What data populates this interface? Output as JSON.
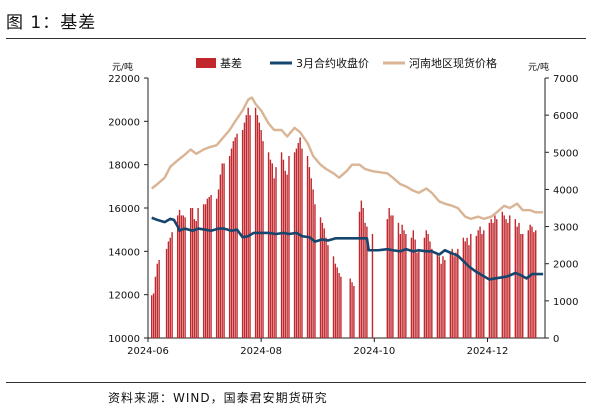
{
  "figure": {
    "title": "图 1：基差",
    "source": "资料来源：WIND，国泰君安期货研究"
  },
  "chart_data": {
    "type": "bar+line",
    "left_axis": {
      "unit": "元/吨",
      "ylim": [
        10000,
        22000
      ],
      "ticks": [
        10000,
        12000,
        14000,
        16000,
        18000,
        20000,
        22000
      ]
    },
    "right_axis": {
      "unit": "元/吨",
      "ylim": [
        0,
        7000
      ],
      "ticks": [
        0,
        1000,
        2000,
        3000,
        4000,
        5000,
        6000,
        7000
      ]
    },
    "x_ticks": [
      "2024-06",
      "2024-08",
      "2024-10",
      "2024-12"
    ],
    "legend": {
      "position": "top",
      "entries": [
        "基差",
        "3月合约收盘价",
        "河南地区现货价格"
      ]
    },
    "colors": {
      "basis": "#c0282d",
      "futures": "#16466e",
      "spot": "#d9b595"
    },
    "series": [
      {
        "name": "基差",
        "axis": "right",
        "type": "bar",
        "points": [
          [
            "2024-06-03",
            1150
          ],
          [
            "2024-06-04",
            1200
          ],
          [
            "2024-06-05",
            1650
          ],
          [
            "2024-06-06",
            2000
          ],
          [
            "2024-06-07",
            2100
          ],
          [
            "2024-06-11",
            2400
          ],
          [
            "2024-06-12",
            2600
          ],
          [
            "2024-06-13",
            2700
          ],
          [
            "2024-06-14",
            2850
          ],
          [
            "2024-06-17",
            3300
          ],
          [
            "2024-06-18",
            3450
          ],
          [
            "2024-06-19",
            3300
          ],
          [
            "2024-06-20",
            3300
          ],
          [
            "2024-06-21",
            3250
          ],
          [
            "2024-06-24",
            3500
          ],
          [
            "2024-06-25",
            3500
          ],
          [
            "2024-06-26",
            3200
          ],
          [
            "2024-06-27",
            3150
          ],
          [
            "2024-06-28",
            3500
          ],
          [
            "2024-07-01",
            3600
          ],
          [
            "2024-07-02",
            3600
          ],
          [
            "2024-07-03",
            3750
          ],
          [
            "2024-07-04",
            3800
          ],
          [
            "2024-07-05",
            3850
          ],
          [
            "2024-07-08",
            3750
          ],
          [
            "2024-07-09",
            4000
          ],
          [
            "2024-07-10",
            4400
          ],
          [
            "2024-07-11",
            4700
          ],
          [
            "2024-07-12",
            4700
          ],
          [
            "2024-07-15",
            4900
          ],
          [
            "2024-07-16",
            5100
          ],
          [
            "2024-07-17",
            5300
          ],
          [
            "2024-07-18",
            5400
          ],
          [
            "2024-07-19",
            5500
          ],
          [
            "2024-07-22",
            5600
          ],
          [
            "2024-07-23",
            5800
          ],
          [
            "2024-07-24",
            6000
          ],
          [
            "2024-07-25",
            6200
          ],
          [
            "2024-07-26",
            6000
          ],
          [
            "2024-07-29",
            6200
          ],
          [
            "2024-07-30",
            6000
          ],
          [
            "2024-07-31",
            5800
          ],
          [
            "2024-08-01",
            5600
          ],
          [
            "2024-08-02",
            5300
          ],
          [
            "2024-08-05",
            5000
          ],
          [
            "2024-08-06",
            4800
          ],
          [
            "2024-08-07",
            4700
          ],
          [
            "2024-08-08",
            4300
          ],
          [
            "2024-08-09",
            4600
          ],
          [
            "2024-08-12",
            5000
          ],
          [
            "2024-08-13",
            4800
          ],
          [
            "2024-08-14",
            4500
          ],
          [
            "2024-08-15",
            4400
          ],
          [
            "2024-08-16",
            4900
          ],
          [
            "2024-08-19",
            5000
          ],
          [
            "2024-08-20",
            5100
          ],
          [
            "2024-08-21",
            5250
          ],
          [
            "2024-08-22",
            5400
          ],
          [
            "2024-08-23",
            5100
          ],
          [
            "2024-08-26",
            4900
          ],
          [
            "2024-08-27",
            4600
          ],
          [
            "2024-08-28",
            4300
          ],
          [
            "2024-08-29",
            4000
          ],
          [
            "2024-08-30",
            3600
          ],
          [
            "2024-09-02",
            3250
          ],
          [
            "2024-09-03",
            3100
          ],
          [
            "2024-09-04",
            2950
          ],
          [
            "2024-09-05",
            2700
          ],
          [
            "2024-09-06",
            2500
          ],
          [
            "2024-09-09",
            2200
          ],
          [
            "2024-09-10",
            2000
          ],
          [
            "2024-09-11",
            1900
          ],
          [
            "2024-09-12",
            1750
          ],
          [
            "2024-09-13",
            1650
          ],
          [
            "2024-09-18",
            1600
          ],
          [
            "2024-09-19",
            1500
          ],
          [
            "2024-09-20",
            1400
          ],
          [
            "2024-09-23",
            3400
          ],
          [
            "2024-09-24",
            3700
          ],
          [
            "2024-09-25",
            3500
          ],
          [
            "2024-09-26",
            3100
          ],
          [
            "2024-09-27",
            3000
          ],
          [
            "2024-09-30",
            2800
          ],
          [
            "2024-10-08",
            3200
          ],
          [
            "2024-10-09",
            3500
          ],
          [
            "2024-10-10",
            3300
          ],
          [
            "2024-10-11",
            3300
          ],
          [
            "2024-10-14",
            3100
          ],
          [
            "2024-10-15",
            2800
          ],
          [
            "2024-10-16",
            3050
          ],
          [
            "2024-10-17",
            2900
          ],
          [
            "2024-10-18",
            2800
          ],
          [
            "2024-10-21",
            2700
          ],
          [
            "2024-10-22",
            2900
          ],
          [
            "2024-10-23",
            2650
          ],
          [
            "2024-10-24",
            2300
          ],
          [
            "2024-10-25",
            2400
          ],
          [
            "2024-10-28",
            2700
          ],
          [
            "2024-10-29",
            2900
          ],
          [
            "2024-10-30",
            2800
          ],
          [
            "2024-10-31",
            2600
          ],
          [
            "2024-11-01",
            2400
          ],
          [
            "2024-11-04",
            2300
          ],
          [
            "2024-11-05",
            2200
          ],
          [
            "2024-11-06",
            2000
          ],
          [
            "2024-11-07",
            2200
          ],
          [
            "2024-11-08",
            2100
          ],
          [
            "2024-11-11",
            2300
          ],
          [
            "2024-11-12",
            2400
          ],
          [
            "2024-11-13",
            2200
          ],
          [
            "2024-11-14",
            2300
          ],
          [
            "2024-11-15",
            2400
          ],
          [
            "2024-11-18",
            2700
          ],
          [
            "2024-11-19",
            2600
          ],
          [
            "2024-11-20",
            2700
          ],
          [
            "2024-11-21",
            2500
          ],
          [
            "2024-11-22",
            2800
          ],
          [
            "2024-11-25",
            2750
          ],
          [
            "2024-11-26",
            2900
          ],
          [
            "2024-11-27",
            3000
          ],
          [
            "2024-11-28",
            2800
          ],
          [
            "2024-11-29",
            2900
          ],
          [
            "2024-12-02",
            3100
          ],
          [
            "2024-12-03",
            3200
          ],
          [
            "2024-12-04",
            3100
          ],
          [
            "2024-12-05",
            3300
          ],
          [
            "2024-12-06",
            3200
          ],
          [
            "2024-12-09",
            3400
          ],
          [
            "2024-12-10",
            3300
          ],
          [
            "2024-12-11",
            3200
          ],
          [
            "2024-12-12",
            3100
          ],
          [
            "2024-12-13",
            3300
          ],
          [
            "2024-12-16",
            3200
          ],
          [
            "2024-12-17",
            3000
          ],
          [
            "2024-12-18",
            3100
          ],
          [
            "2024-12-19",
            2800
          ],
          [
            "2024-12-20",
            2800
          ],
          [
            "2024-12-23",
            2900
          ],
          [
            "2024-12-24",
            3050
          ],
          [
            "2024-12-25",
            3000
          ],
          [
            "2024-12-26",
            2850
          ],
          [
            "2024-12-27",
            2900
          ]
        ]
      },
      {
        "name": "3月合约收盘价",
        "axis": "left",
        "type": "line",
        "points": [
          [
            "2024-06-03",
            15550
          ],
          [
            "2024-06-06",
            15450
          ],
          [
            "2024-06-10",
            15350
          ],
          [
            "2024-06-13",
            15500
          ],
          [
            "2024-06-15",
            15450
          ],
          [
            "2024-06-17",
            15150
          ],
          [
            "2024-06-18",
            14950
          ],
          [
            "2024-06-19",
            15000
          ],
          [
            "2024-06-21",
            15050
          ],
          [
            "2024-06-25",
            14950
          ],
          [
            "2024-06-28",
            15050
          ],
          [
            "2024-07-02",
            15000
          ],
          [
            "2024-07-05",
            14950
          ],
          [
            "2024-07-09",
            15050
          ],
          [
            "2024-07-12",
            15050
          ],
          [
            "2024-07-16",
            14950
          ],
          [
            "2024-07-19",
            15000
          ],
          [
            "2024-07-22",
            14650
          ],
          [
            "2024-07-25",
            14700
          ],
          [
            "2024-07-28",
            14850
          ],
          [
            "2024-08-01",
            14850
          ],
          [
            "2024-08-05",
            14850
          ],
          [
            "2024-08-09",
            14800
          ],
          [
            "2024-08-13",
            14850
          ],
          [
            "2024-08-16",
            14800
          ],
          [
            "2024-08-20",
            14850
          ],
          [
            "2024-08-23",
            14700
          ],
          [
            "2024-08-27",
            14650
          ],
          [
            "2024-08-30",
            14450
          ],
          [
            "2024-09-03",
            14550
          ],
          [
            "2024-09-06",
            14500
          ],
          [
            "2024-09-10",
            14600
          ],
          [
            "2024-09-13",
            14600
          ],
          [
            "2024-09-17",
            14600
          ],
          [
            "2024-09-20",
            14600
          ],
          [
            "2024-09-24",
            14600
          ],
          [
            "2024-09-27",
            14600
          ],
          [
            "2024-09-28",
            14050
          ],
          [
            "2024-10-03",
            14050
          ],
          [
            "2024-10-08",
            14100
          ],
          [
            "2024-10-11",
            14050
          ],
          [
            "2024-10-15",
            14000
          ],
          [
            "2024-10-18",
            14100
          ],
          [
            "2024-10-22",
            14000
          ],
          [
            "2024-10-25",
            14050
          ],
          [
            "2024-10-29",
            14000
          ],
          [
            "2024-11-01",
            14000
          ],
          [
            "2024-11-05",
            13850
          ],
          [
            "2024-11-08",
            14050
          ],
          [
            "2024-11-12",
            13900
          ],
          [
            "2024-11-15",
            13800
          ],
          [
            "2024-11-18",
            13550
          ],
          [
            "2024-11-21",
            13300
          ],
          [
            "2024-11-25",
            13050
          ],
          [
            "2024-11-28",
            12900
          ],
          [
            "2024-12-02",
            12700
          ],
          [
            "2024-12-05",
            12750
          ],
          [
            "2024-12-09",
            12800
          ],
          [
            "2024-12-12",
            12850
          ],
          [
            "2024-12-16",
            13000
          ],
          [
            "2024-12-19",
            12900
          ],
          [
            "2024-12-22",
            12750
          ],
          [
            "2024-12-25",
            12950
          ],
          [
            "2024-12-28",
            12950
          ],
          [
            "2024-12-31",
            12950
          ]
        ]
      },
      {
        "name": "河南地区现货价格",
        "axis": "left",
        "type": "line",
        "points": [
          [
            "2024-06-03",
            16900
          ],
          [
            "2024-06-06",
            17100
          ],
          [
            "2024-06-10",
            17400
          ],
          [
            "2024-06-13",
            17900
          ],
          [
            "2024-06-17",
            18200
          ],
          [
            "2024-06-20",
            18400
          ],
          [
            "2024-06-24",
            18700
          ],
          [
            "2024-06-27",
            18500
          ],
          [
            "2024-07-01",
            18700
          ],
          [
            "2024-07-04",
            18800
          ],
          [
            "2024-07-08",
            18900
          ],
          [
            "2024-07-11",
            19200
          ],
          [
            "2024-07-15",
            19600
          ],
          [
            "2024-07-18",
            20000
          ],
          [
            "2024-07-22",
            20500
          ],
          [
            "2024-07-25",
            21000
          ],
          [
            "2024-07-27",
            21100
          ],
          [
            "2024-07-29",
            20800
          ],
          [
            "2024-08-01",
            20500
          ],
          [
            "2024-08-05",
            19900
          ],
          [
            "2024-08-08",
            19600
          ],
          [
            "2024-08-12",
            19600
          ],
          [
            "2024-08-15",
            19300
          ],
          [
            "2024-08-19",
            19700
          ],
          [
            "2024-08-22",
            19500
          ],
          [
            "2024-08-26",
            19000
          ],
          [
            "2024-08-29",
            18400
          ],
          [
            "2024-09-02",
            18000
          ],
          [
            "2024-09-05",
            17800
          ],
          [
            "2024-09-09",
            17600
          ],
          [
            "2024-09-12",
            17400
          ],
          [
            "2024-09-16",
            17700
          ],
          [
            "2024-09-19",
            18000
          ],
          [
            "2024-09-23",
            18000
          ],
          [
            "2024-09-26",
            17800
          ],
          [
            "2024-09-30",
            17700
          ],
          [
            "2024-10-08",
            17600
          ],
          [
            "2024-10-11",
            17400
          ],
          [
            "2024-10-15",
            17100
          ],
          [
            "2024-10-18",
            17000
          ],
          [
            "2024-10-22",
            16800
          ],
          [
            "2024-10-25",
            16700
          ],
          [
            "2024-10-29",
            16900
          ],
          [
            "2024-11-01",
            16700
          ],
          [
            "2024-11-05",
            16300
          ],
          [
            "2024-11-08",
            16200
          ],
          [
            "2024-11-12",
            16100
          ],
          [
            "2024-11-15",
            16000
          ],
          [
            "2024-11-19",
            15600
          ],
          [
            "2024-11-22",
            15500
          ],
          [
            "2024-11-26",
            15600
          ],
          [
            "2024-11-29",
            15500
          ],
          [
            "2024-12-03",
            15600
          ],
          [
            "2024-12-06",
            15800
          ],
          [
            "2024-12-10",
            16100
          ],
          [
            "2024-12-13",
            16000
          ],
          [
            "2024-12-17",
            16200
          ],
          [
            "2024-12-20",
            15900
          ],
          [
            "2024-12-24",
            15900
          ],
          [
            "2024-12-27",
            15800
          ],
          [
            "2024-12-31",
            15800
          ]
        ]
      }
    ]
  }
}
